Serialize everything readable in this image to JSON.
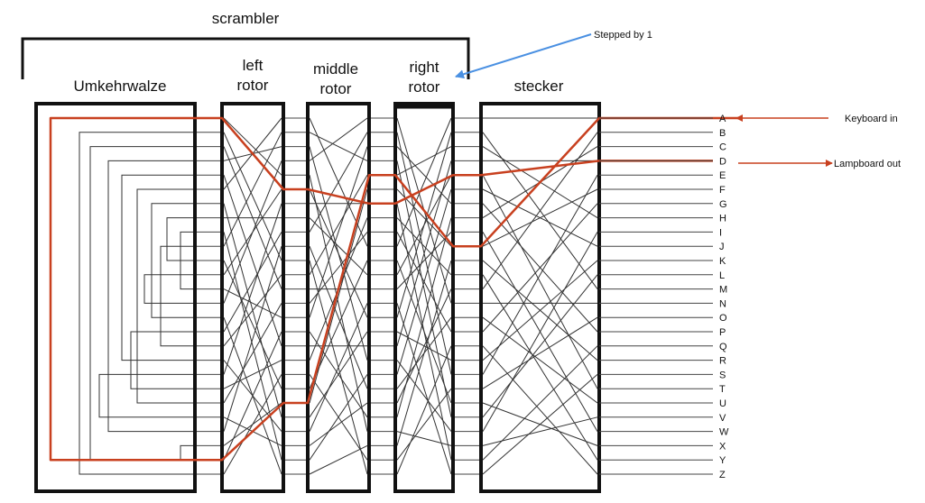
{
  "scrambler_label": "scrambler",
  "components": {
    "umkehrwalze": "Umkehrwalze",
    "left_rotor": [
      "left",
      "rotor"
    ],
    "middle_rotor": [
      "middle",
      "rotor"
    ],
    "right_rotor": [
      "right",
      "rotor"
    ],
    "stecker": "stecker"
  },
  "letters": [
    "A",
    "B",
    "C",
    "D",
    "E",
    "F",
    "G",
    "H",
    "I",
    "J",
    "K",
    "L",
    "M",
    "N",
    "O",
    "P",
    "Q",
    "R",
    "S",
    "T",
    "U",
    "V",
    "W",
    "X",
    "Y",
    "Z"
  ],
  "annotations": {
    "stepped": "Stepped by 1",
    "keyboard_in": "Keyboard in",
    "lampboard_out": "Lampboard out"
  },
  "colors": {
    "signal_path": "#c8401f",
    "stepped_arrow": "#4a90e2",
    "wiring": "#333333"
  }
}
